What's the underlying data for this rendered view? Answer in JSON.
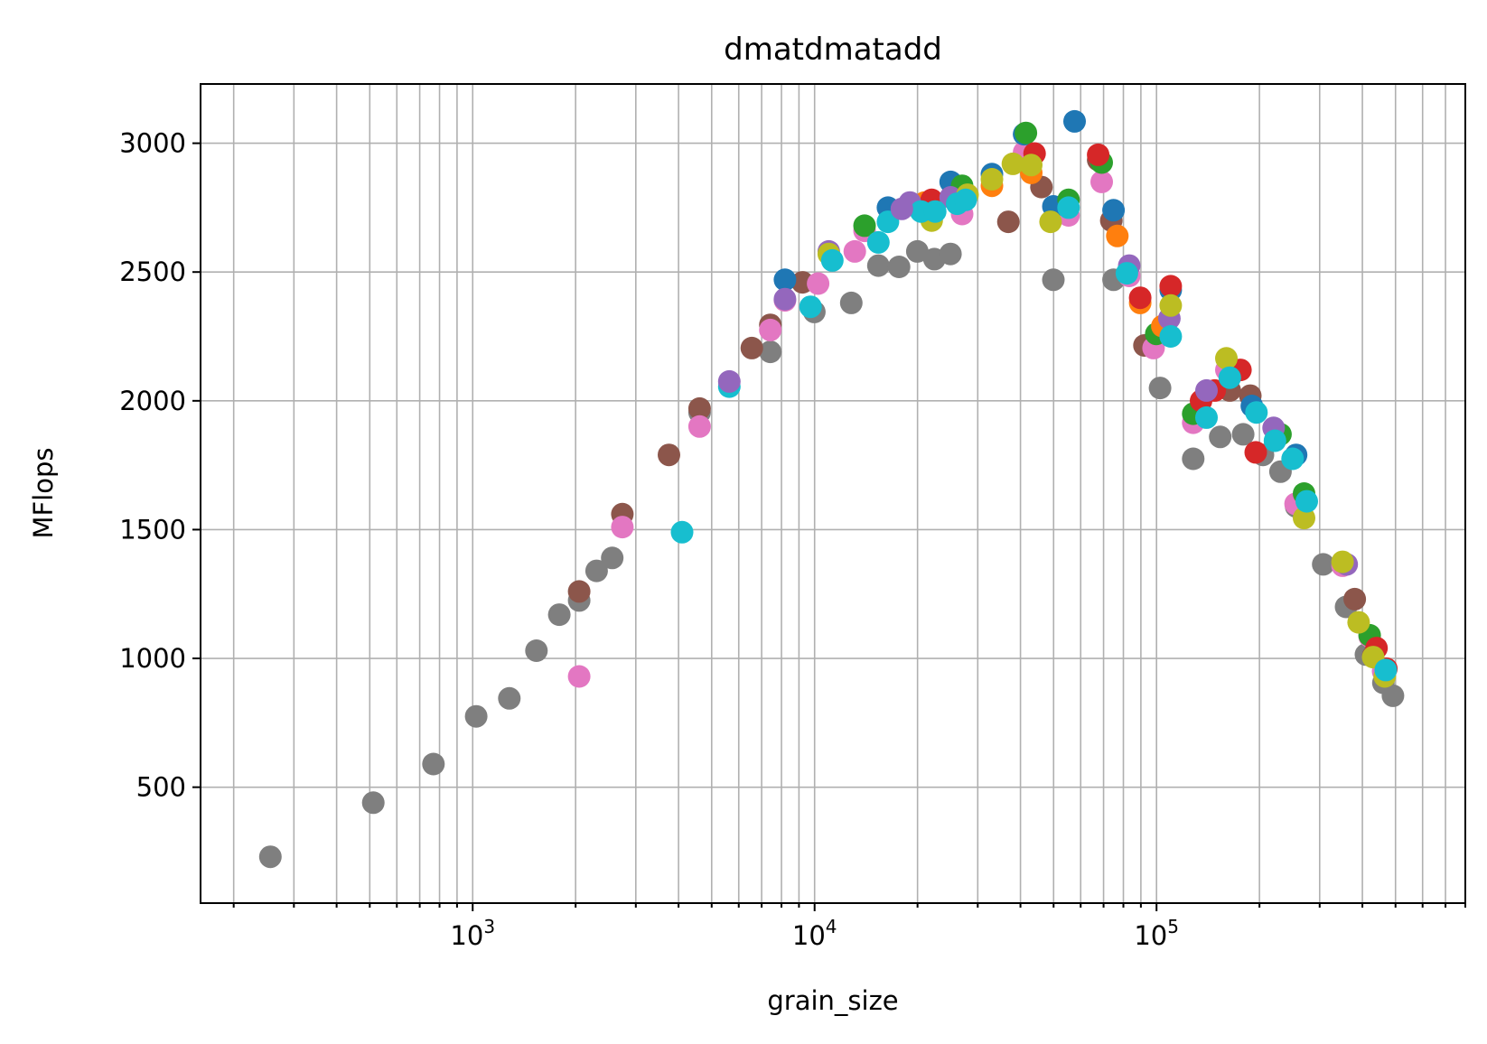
{
  "chart_data": {
    "type": "scatter",
    "title": "dmatdmatadd",
    "xlabel": "grain_size",
    "ylabel": "MFlops",
    "xscale": "log",
    "xlim": [
      160,
      800000
    ],
    "ylim": [
      50,
      3230
    ],
    "grid": true,
    "legend": "none",
    "x_ticks": [
      {
        "value": 1000,
        "base": "10",
        "exp": "3"
      },
      {
        "value": 10000,
        "base": "10",
        "exp": "4"
      },
      {
        "value": 100000,
        "base": "10",
        "exp": "5"
      }
    ],
    "y_ticks": [
      {
        "value": 500,
        "label": "500"
      },
      {
        "value": 1000,
        "label": "1000"
      },
      {
        "value": 1500,
        "label": "1500"
      },
      {
        "value": 2000,
        "label": "2000"
      },
      {
        "value": 2500,
        "label": "2500"
      },
      {
        "value": 3000,
        "label": "3000"
      }
    ],
    "series": [
      {
        "color": "#7f7f7f",
        "points": [
          [
            256,
            230
          ],
          [
            512,
            440
          ],
          [
            768,
            590
          ],
          [
            1024,
            775
          ],
          [
            1280,
            845
          ],
          [
            1536,
            1030
          ],
          [
            1792,
            1170
          ],
          [
            2048,
            1225
          ],
          [
            2304,
            1340
          ],
          [
            2560,
            1390
          ],
          [
            4608,
            1955
          ],
          [
            7424,
            2190
          ],
          [
            9984,
            2345
          ],
          [
            12800,
            2380
          ],
          [
            15360,
            2525
          ],
          [
            17664,
            2520
          ],
          [
            19968,
            2580
          ],
          [
            22400,
            2550
          ],
          [
            24960,
            2570
          ],
          [
            49920,
            2470
          ],
          [
            74880,
            2470
          ],
          [
            102400,
            2050
          ],
          [
            128000,
            1775
          ],
          [
            153600,
            1860
          ],
          [
            179200,
            1870
          ],
          [
            204800,
            1790
          ],
          [
            230400,
            1725
          ],
          [
            256000,
            1590
          ],
          [
            307200,
            1365
          ],
          [
            358400,
            1200
          ],
          [
            409600,
            1015
          ],
          [
            460800,
            905
          ],
          [
            491520,
            855
          ]
        ]
      },
      {
        "color": "#8c564b",
        "points": [
          [
            2048,
            1260
          ],
          [
            2740,
            1560
          ],
          [
            3750,
            1790
          ],
          [
            4608,
            1970
          ],
          [
            6553,
            2205
          ],
          [
            7424,
            2295
          ],
          [
            9216,
            2460
          ],
          [
            36864,
            2695
          ],
          [
            46080,
            2830
          ],
          [
            67500,
            2935
          ],
          [
            73728,
            2700
          ],
          [
            92160,
            2215
          ],
          [
            163840,
            2040
          ],
          [
            188000,
            2020
          ],
          [
            380000,
            1230
          ],
          [
            430000,
            1010
          ]
        ]
      },
      {
        "color": "#e377c2",
        "points": [
          [
            2048,
            930
          ],
          [
            2740,
            1510
          ],
          [
            4608,
            1900
          ],
          [
            7424,
            2275
          ],
          [
            8192,
            2390
          ],
          [
            10240,
            2455
          ],
          [
            13107,
            2580
          ],
          [
            14000,
            2660
          ],
          [
            21000,
            2735
          ],
          [
            27000,
            2725
          ],
          [
            41000,
            2965
          ],
          [
            55296,
            2720
          ],
          [
            69120,
            2850
          ],
          [
            83200,
            2485
          ],
          [
            98000,
            2205
          ],
          [
            128000,
            1915
          ],
          [
            160000,
            2120
          ],
          [
            255000,
            1600
          ],
          [
            350000,
            1360
          ],
          [
            420000,
            1085
          ],
          [
            460000,
            950
          ]
        ]
      },
      {
        "color": "#1f77b4",
        "points": [
          [
            8192,
            2470
          ],
          [
            16384,
            2750
          ],
          [
            25000,
            2850
          ],
          [
            33000,
            2880
          ],
          [
            41000,
            3035
          ],
          [
            49920,
            2755
          ],
          [
            57600,
            3085
          ],
          [
            74880,
            2740
          ],
          [
            110000,
            2430
          ],
          [
            190000,
            1980
          ],
          [
            256000,
            1790
          ]
        ]
      },
      {
        "color": "#2ca02c",
        "points": [
          [
            14000,
            2680
          ],
          [
            27000,
            2835
          ],
          [
            41500,
            3040
          ],
          [
            55296,
            2780
          ],
          [
            69120,
            2925
          ],
          [
            99840,
            2260
          ],
          [
            128000,
            1950
          ],
          [
            230400,
            1870
          ],
          [
            270000,
            1640
          ],
          [
            420000,
            1090
          ]
        ]
      },
      {
        "color": "#ff7f0e",
        "points": [
          [
            21000,
            2770
          ],
          [
            33000,
            2835
          ],
          [
            43000,
            2885
          ],
          [
            76800,
            2640
          ],
          [
            89600,
            2380
          ],
          [
            104000,
            2290
          ]
        ]
      },
      {
        "color": "#d62728",
        "points": [
          [
            22000,
            2780
          ],
          [
            44000,
            2960
          ],
          [
            67500,
            2955
          ],
          [
            89600,
            2400
          ],
          [
            110000,
            2445
          ],
          [
            135000,
            2000
          ],
          [
            148000,
            2040
          ],
          [
            176000,
            2120
          ],
          [
            195000,
            1800
          ],
          [
            440000,
            1040
          ],
          [
            470000,
            960
          ]
        ]
      },
      {
        "color": "#9467bd",
        "points": [
          [
            11000,
            2580
          ],
          [
            19000,
            2770
          ],
          [
            25000,
            2790
          ],
          [
            83200,
            2525
          ],
          [
            109000,
            2320
          ],
          [
            140000,
            2040
          ],
          [
            220000,
            1895
          ],
          [
            360000,
            1365
          ]
        ]
      },
      {
        "color": "#bcbd22",
        "points": [
          [
            11000,
            2570
          ],
          [
            22000,
            2700
          ],
          [
            28000,
            2800
          ],
          [
            33000,
            2860
          ],
          [
            38000,
            2920
          ],
          [
            43000,
            2915
          ],
          [
            49000,
            2695
          ],
          [
            110000,
            2370
          ],
          [
            160000,
            2165
          ],
          [
            270000,
            1545
          ],
          [
            350000,
            1375
          ],
          [
            390000,
            1140
          ],
          [
            430000,
            1005
          ],
          [
            465000,
            930
          ]
        ]
      },
      {
        "color": "#17becf",
        "points": [
          [
            4096,
            1490
          ],
          [
            5632,
            2055
          ],
          [
            9728,
            2365
          ],
          [
            11264,
            2545
          ],
          [
            15360,
            2615
          ],
          [
            16384,
            2695
          ],
          [
            20480,
            2735
          ],
          [
            22528,
            2735
          ],
          [
            26112,
            2765
          ],
          [
            27648,
            2780
          ],
          [
            55296,
            2750
          ],
          [
            81920,
            2495
          ],
          [
            110000,
            2250
          ],
          [
            140000,
            1935
          ],
          [
            163840,
            2090
          ],
          [
            196000,
            1955
          ],
          [
            222000,
            1845
          ],
          [
            250000,
            1775
          ],
          [
            275000,
            1610
          ],
          [
            468000,
            955
          ]
        ]
      },
      {
        "color": "#9467bd",
        "points": [
          [
            5632,
            2075
          ],
          [
            8192,
            2395
          ],
          [
            18000,
            2745
          ]
        ]
      }
    ]
  }
}
